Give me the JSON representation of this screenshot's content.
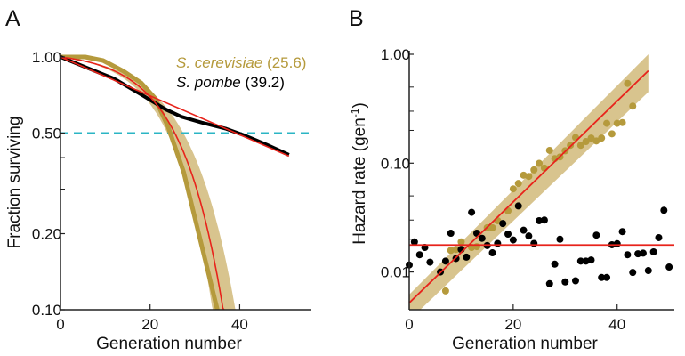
{
  "colors": {
    "cerevisiae": "#b59a3c",
    "band": "#d8c48e",
    "pombe": "#000000",
    "fit": "#e8231b",
    "median": "#2bb5c4"
  },
  "chart_data": [
    {
      "panel_label": "A",
      "type": "line",
      "xlabel": "Generation number",
      "ylabel": "Fraction surviving",
      "yscale": "log",
      "xlim": [
        0,
        56
      ],
      "ylim": [
        0.1,
        1.0
      ],
      "xticks": [
        "0",
        "20",
        "40"
      ],
      "yticks": [
        "1.00",
        "0.50",
        "0.20",
        "0.10"
      ],
      "yminor_ticks": [
        0.4,
        0.3
      ],
      "median_line": 0.5,
      "legend": [
        {
          "name": "S. cerevisiae",
          "value": "(25.6)",
          "color": "#b59a3c"
        },
        {
          "name": "S. pombe",
          "value": "(39.2)",
          "color": "#000000"
        }
      ],
      "series": [
        {
          "name": "S. cerevisiae",
          "x": [
            0,
            5.5,
            9.5,
            14,
            18,
            21,
            24,
            27.5,
            31.5,
            35
          ],
          "y": [
            1.0,
            1.0,
            0.968,
            0.88,
            0.79,
            0.69,
            0.53,
            0.35,
            0.18,
            0.1
          ]
        },
        {
          "name": "S. pombe",
          "x": [
            0,
            6,
            12,
            18,
            23.5,
            27,
            31.5,
            37,
            41,
            46,
            51
          ],
          "y": [
            1.0,
            0.905,
            0.82,
            0.71,
            0.62,
            0.58,
            0.55,
            0.52,
            0.49,
            0.45,
            0.41
          ]
        }
      ],
      "fits": [
        {
          "model": "gompertz",
          "a": 0.0052,
          "b": 0.1068,
          "x_end": 36.7
        },
        {
          "model": "exponential",
          "a": 0.0177,
          "x_end": 51
        }
      ]
    },
    {
      "panel_label": "B",
      "type": "scatter",
      "xlabel": "Generation number",
      "ylabel": "Hazard rate (gen",
      "ylabel_sup": "-1",
      "ylabel_end": ")",
      "yscale": "log",
      "xlim": [
        0,
        51
      ],
      "ylim": [
        0.0045,
        1.0
      ],
      "xticks": [
        "0",
        "20",
        "40"
      ],
      "yticks": [
        "1.00",
        "0.10",
        "0.01"
      ],
      "yminor_ticks": [
        0.5,
        0.3,
        0.2,
        0.05,
        0.03,
        0.02
      ],
      "series": [
        {
          "name": "S. cerevisiae",
          "x": [
            7,
            8,
            9,
            10,
            12,
            13,
            15,
            16,
            17,
            19,
            20,
            21,
            22,
            23,
            24,
            25,
            26,
            27,
            28,
            29,
            30,
            31,
            32,
            33,
            34,
            35,
            36,
            37,
            38,
            39,
            40,
            41,
            42,
            43
          ],
          "y": [
            0.0067,
            0.0158,
            0.0161,
            0.0189,
            0.0168,
            0.0171,
            0.0255,
            0.0255,
            0.0296,
            0.0365,
            0.058,
            0.065,
            0.0775,
            0.0755,
            0.0867,
            0.0995,
            0.0901,
            0.131,
            0.11,
            0.114,
            0.13,
            0.146,
            0.172,
            0.146,
            0.158,
            0.17,
            0.16,
            0.17,
            0.232,
            0.186,
            0.232,
            0.236,
            0.54,
            0.334
          ]
        },
        {
          "name": "S. pombe",
          "x": [
            0,
            1,
            2,
            3,
            4,
            6,
            7,
            8,
            9,
            10,
            11,
            12,
            13,
            14,
            15,
            16,
            17,
            18,
            19,
            20,
            21,
            22,
            23,
            24,
            25,
            26,
            27,
            28,
            29,
            30,
            32,
            33,
            34,
            35,
            36,
            37,
            38,
            39,
            40,
            41,
            42,
            43,
            44,
            45,
            46,
            47,
            48,
            49,
            50
          ],
          "y": [
            0.0116,
            0.0189,
            0.0144,
            0.0168,
            0.0123,
            0.01,
            0.0126,
            0.0227,
            0.0133,
            0.0161,
            0.0137,
            0.0353,
            0.0227,
            0.0204,
            0.0175,
            0.015,
            0.0183,
            0.0279,
            0.0223,
            0.0197,
            0.0404,
            0.0242,
            0.0214,
            0.0183,
            0.0296,
            0.03,
            0.0078,
            0.0118,
            0.02,
            0.0081,
            0.0083,
            0.0126,
            0.0126,
            0.0129,
            0.0218,
            0.0089,
            0.0089,
            0.0178,
            0.0182,
            0.0235,
            0.0144,
            0.0099,
            0.0147,
            0.0149,
            0.0103,
            0.0153,
            0.0207,
            0.0369,
            0.0111
          ]
        }
      ],
      "fits": [
        {
          "name": "S. cerevisiae",
          "x": [
            0,
            46
          ],
          "y": [
            0.0052,
            0.706
          ],
          "band_lower": [
            0.0036,
            0.45
          ],
          "band_upper": [
            0.0062,
            1.0
          ]
        },
        {
          "name": "S. pombe",
          "x": [
            0,
            51
          ],
          "y": [
            0.0177,
            0.0177
          ]
        }
      ]
    }
  ]
}
